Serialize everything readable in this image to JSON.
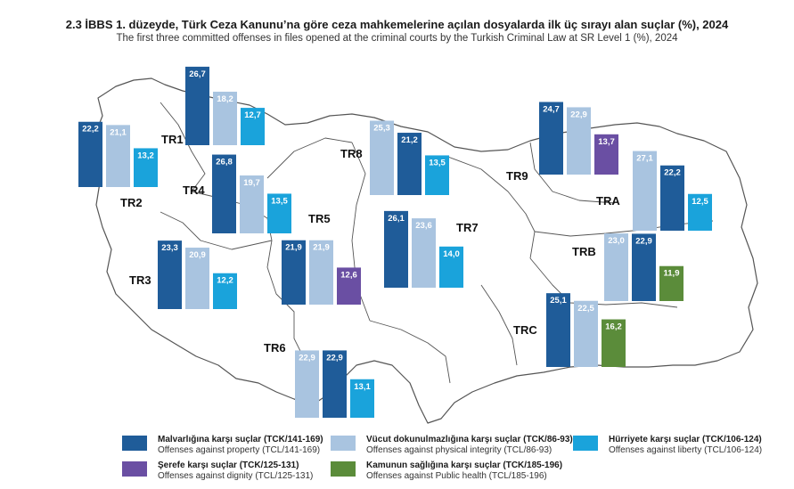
{
  "title": {
    "tr": "2.3 İBBS 1. düzeyde, Türk Ceza Kanunu’na göre ceza mahkemelerine açılan dosyalarda ilk üç sırayı alan suçlar (%), 2024",
    "en": "The first three committed offenses in files opened at the criminal courts by the Turkish Criminal Law at SR Level 1 (%), 2024"
  },
  "colors": {
    "property": "#1f5c99",
    "physical": "#a9c4e0",
    "liberty": "#1aa3db",
    "dignity": "#6a4fa3",
    "health": "#5b8c3a",
    "map_fill": "#ffffff",
    "map_stroke": "#555555"
  },
  "legend": [
    {
      "key": "property",
      "tr": "Malvarlığına karşı suçlar (TCK/141-169)",
      "en": "Offenses against property (TCL/141-169)"
    },
    {
      "key": "physical",
      "tr": "Vücut dokunulmazlığına karşı suçlar (TCK/86-93)",
      "en": "Offenses against physical integrity (TCL/86-93)"
    },
    {
      "key": "liberty",
      "tr": "Hürriyete karşı suçlar (TCK/106-124)",
      "en": "Offenses against liberty (TCL/106-124)"
    },
    {
      "key": "dignity",
      "tr": "Şerefe karşı suçlar (TCK/125-131)",
      "en": "Offenses against dignity (TCL/125-131)"
    },
    {
      "key": "health",
      "tr": "Kamunun sağlığına karşı suçlar (TCK/185-196)",
      "en": "Offenses against Public health (TCL/185-196)"
    }
  ],
  "chart_data": {
    "type": "bar",
    "regions": [
      {
        "name": "TR1",
        "bars": [
          {
            "key": "property",
            "value": 26.7,
            "label": "26,7"
          },
          {
            "key": "physical",
            "value": 18.2,
            "label": "18,2"
          },
          {
            "key": "liberty",
            "value": 12.7,
            "label": "12,7"
          }
        ]
      },
      {
        "name": "TR2",
        "bars": [
          {
            "key": "property",
            "value": 22.2,
            "label": "22,2"
          },
          {
            "key": "physical",
            "value": 21.1,
            "label": "21,1"
          },
          {
            "key": "liberty",
            "value": 13.2,
            "label": "13,2"
          }
        ]
      },
      {
        "name": "TR3",
        "bars": [
          {
            "key": "property",
            "value": 23.3,
            "label": "23,3"
          },
          {
            "key": "physical",
            "value": 20.9,
            "label": "20,9"
          },
          {
            "key": "liberty",
            "value": 12.2,
            "label": "12,2"
          }
        ]
      },
      {
        "name": "TR4",
        "bars": [
          {
            "key": "property",
            "value": 26.8,
            "label": "26,8"
          },
          {
            "key": "physical",
            "value": 19.7,
            "label": "19,7"
          },
          {
            "key": "liberty",
            "value": 13.5,
            "label": "13,5"
          }
        ]
      },
      {
        "name": "TR5",
        "bars": [
          {
            "key": "property",
            "value": 21.9,
            "label": "21,9"
          },
          {
            "key": "physical",
            "value": 21.9,
            "label": "21,9"
          },
          {
            "key": "dignity",
            "value": 12.6,
            "label": "12,6"
          }
        ]
      },
      {
        "name": "TR6",
        "bars": [
          {
            "key": "physical",
            "value": 22.9,
            "label": "22,9"
          },
          {
            "key": "property",
            "value": 22.9,
            "label": "22,9"
          },
          {
            "key": "liberty",
            "value": 13.1,
            "label": "13,1"
          }
        ]
      },
      {
        "name": "TR7",
        "bars": [
          {
            "key": "property",
            "value": 26.1,
            "label": "26,1"
          },
          {
            "key": "physical",
            "value": 23.6,
            "label": "23,6"
          },
          {
            "key": "liberty",
            "value": 14.0,
            "label": "14,0"
          }
        ]
      },
      {
        "name": "TR8",
        "bars": [
          {
            "key": "physical",
            "value": 25.3,
            "label": "25,3"
          },
          {
            "key": "property",
            "value": 21.2,
            "label": "21,2"
          },
          {
            "key": "liberty",
            "value": 13.5,
            "label": "13,5"
          }
        ]
      },
      {
        "name": "TR9",
        "bars": [
          {
            "key": "property",
            "value": 24.7,
            "label": "24,7"
          },
          {
            "key": "physical",
            "value": 22.9,
            "label": "22,9"
          },
          {
            "key": "dignity",
            "value": 13.7,
            "label": "13,7"
          }
        ]
      },
      {
        "name": "TRA",
        "bars": [
          {
            "key": "physical",
            "value": 27.1,
            "label": "27,1"
          },
          {
            "key": "property",
            "value": 22.2,
            "label": "22,2"
          },
          {
            "key": "liberty",
            "value": 12.5,
            "label": "12,5"
          }
        ]
      },
      {
        "name": "TRB",
        "bars": [
          {
            "key": "physical",
            "value": 23.0,
            "label": "23,0"
          },
          {
            "key": "property",
            "value": 22.9,
            "label": "22,9"
          },
          {
            "key": "health",
            "value": 11.9,
            "label": "11,9"
          }
        ]
      },
      {
        "name": "TRC",
        "bars": [
          {
            "key": "property",
            "value": 25.1,
            "label": "25,1"
          },
          {
            "key": "physical",
            "value": 22.5,
            "label": "22,5"
          },
          {
            "key": "health",
            "value": 16.2,
            "label": "16,2"
          }
        ]
      }
    ]
  }
}
